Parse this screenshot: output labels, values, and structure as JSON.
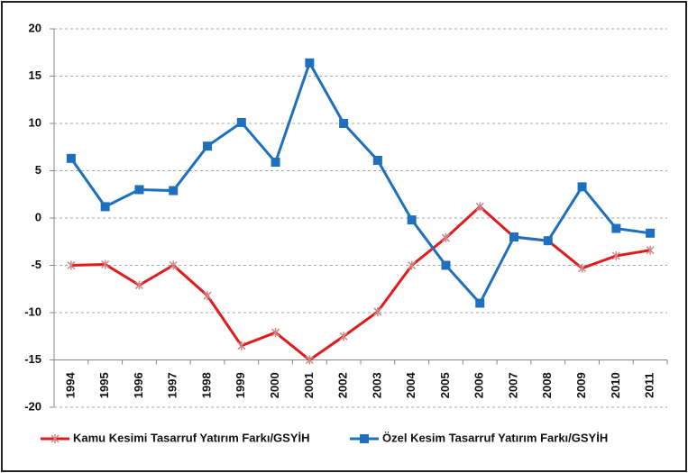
{
  "chart_data": {
    "type": "line",
    "categories": [
      "1994",
      "1995",
      "1996",
      "1997",
      "1998",
      "1999",
      "2000",
      "2001",
      "2002",
      "2003",
      "2004",
      "2005",
      "2006",
      "2007",
      "2008",
      "2009",
      "2010",
      "2011"
    ],
    "series": [
      {
        "name": "Kamu Kesimi Tasarruf Yatırım Farkı/GSYİH",
        "color": "#e31a1c",
        "marker": "star",
        "values": [
          -5.0,
          -4.9,
          -7.1,
          -5.0,
          -8.2,
          -13.5,
          -12.1,
          -15.0,
          -12.5,
          -9.9,
          -5.0,
          -2.1,
          1.2,
          -2.0,
          -2.4,
          -5.3,
          -4.0,
          -3.4
        ]
      },
      {
        "name": "Özel Kesim Tasarruf Yatırım Farkı/GSYİH",
        "color": "#1f6fbf",
        "marker": "square",
        "values": [
          6.3,
          1.2,
          3.0,
          2.9,
          7.6,
          10.1,
          5.9,
          16.4,
          10.0,
          6.1,
          -0.2,
          -5.0,
          -9.0,
          -2.0,
          -2.4,
          3.3,
          -1.1,
          -1.6
        ]
      }
    ],
    "ylim": [
      -20,
      20
    ],
    "yticks": [
      -20,
      -15,
      -10,
      -5,
      0,
      5,
      10,
      15,
      20
    ],
    "grid": true,
    "x_axis_crossing": -15,
    "legend": "bottom"
  }
}
